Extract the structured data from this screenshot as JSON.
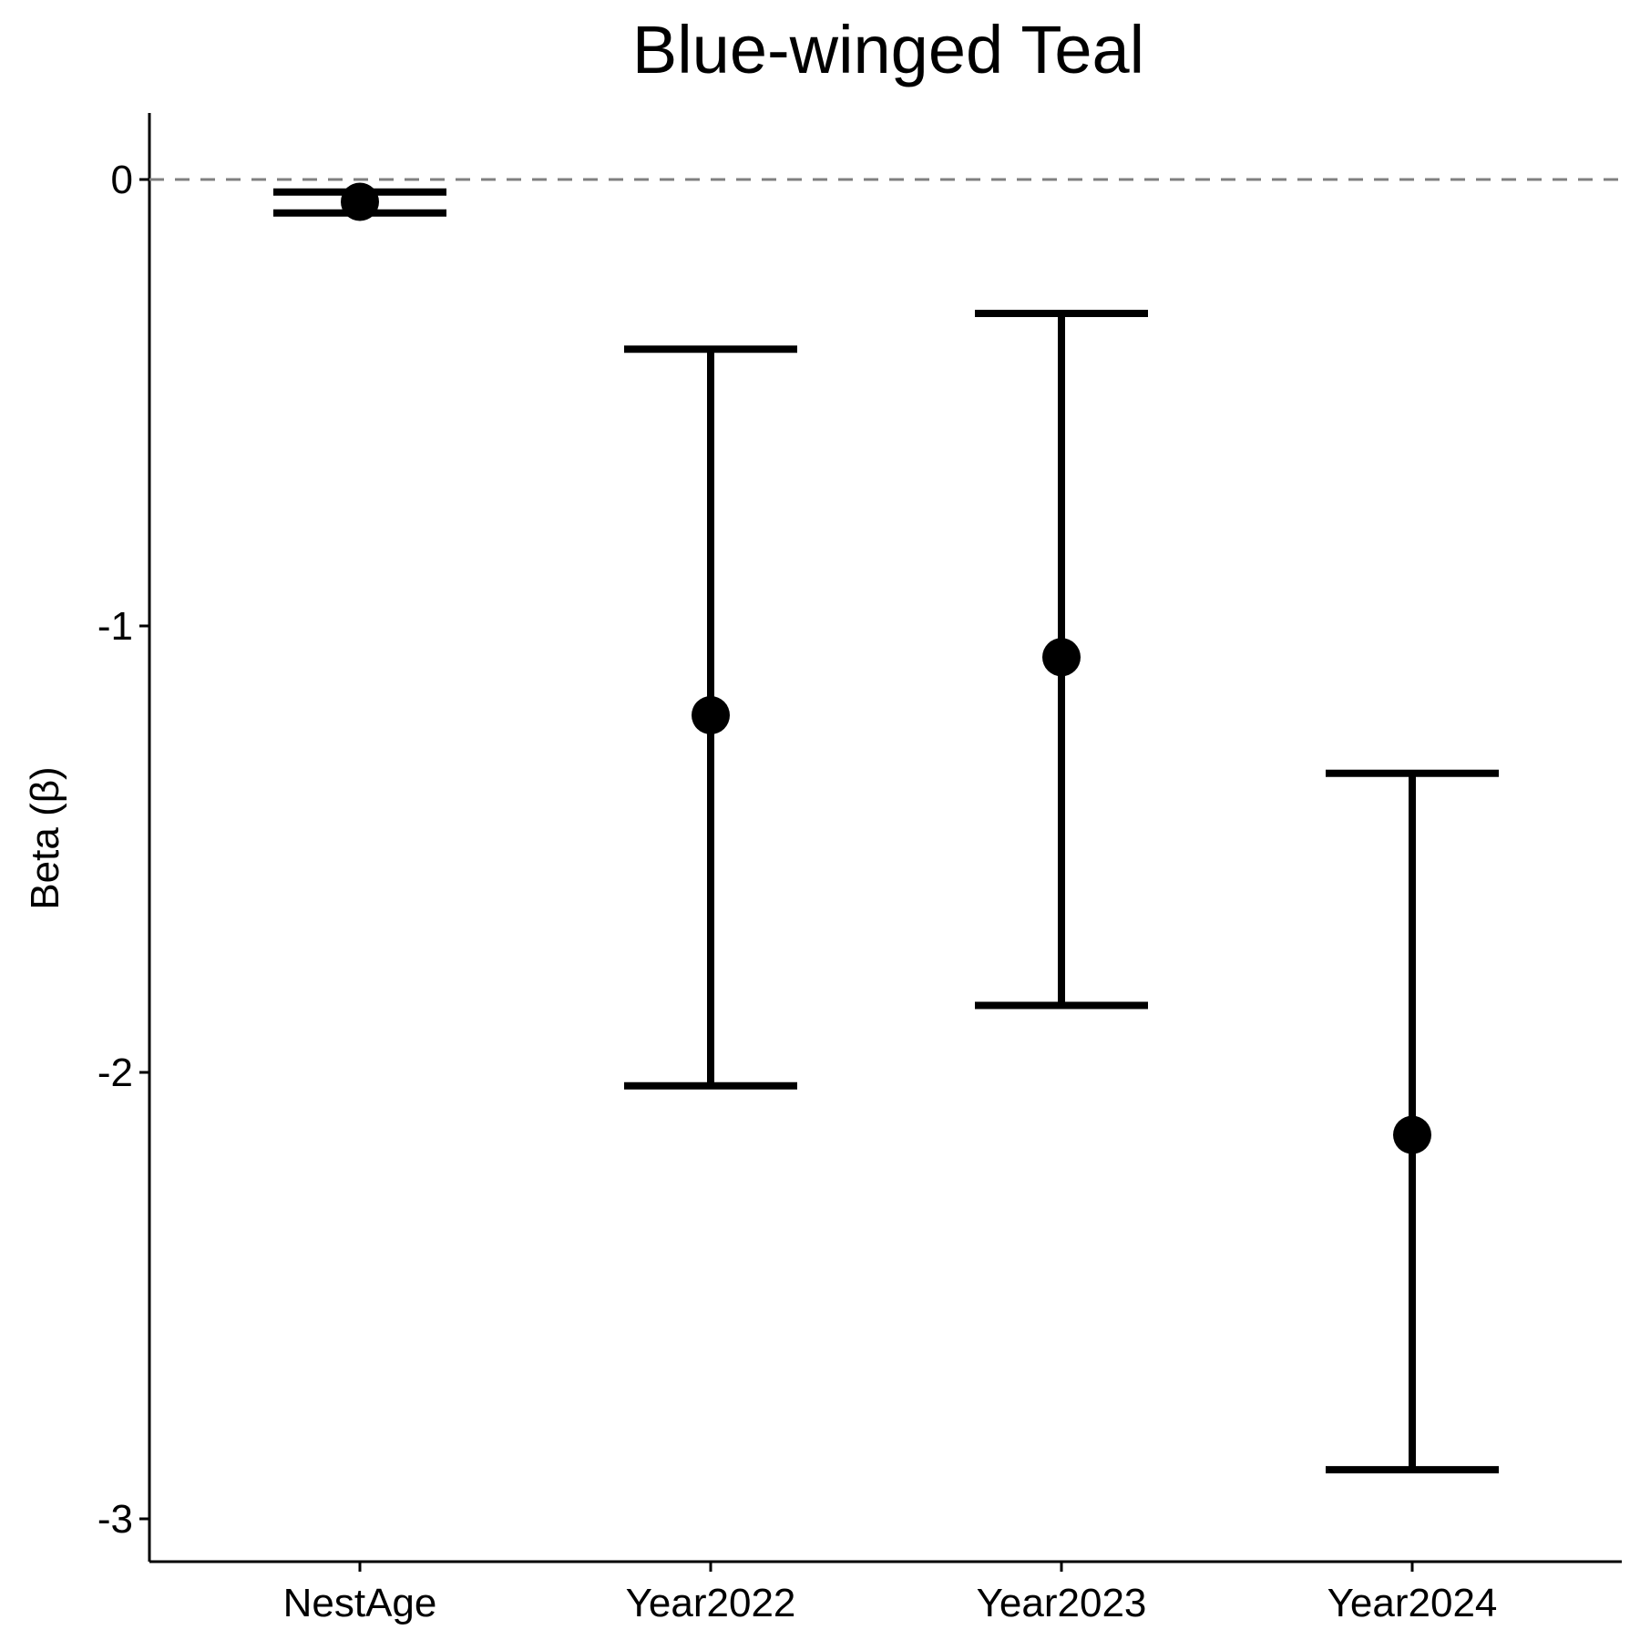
{
  "chart_data": {
    "type": "errorbar",
    "title": "Blue-winged Teal",
    "ylabel": "Beta (β)",
    "xlabel": "",
    "categories": [
      "NestAge",
      "Year2022",
      "Year2023",
      "Year2024"
    ],
    "points": [
      {
        "category": "NestAge",
        "estimate": -0.05,
        "lower": -0.075,
        "upper": -0.028
      },
      {
        "category": "Year2022",
        "estimate": -1.2,
        "lower": -2.03,
        "upper": -0.38
      },
      {
        "category": "Year2023",
        "estimate": -1.07,
        "lower": -1.85,
        "upper": -0.3
      },
      {
        "category": "Year2024",
        "estimate": -2.14,
        "lower": -2.89,
        "upper": -1.33
      }
    ],
    "yticks": [
      0,
      -1,
      -2,
      -3
    ],
    "ytick_labels": [
      "0",
      "-1",
      "-2",
      "-3"
    ],
    "ylim": [
      -3.16,
      0.15
    ],
    "reference_line": 0,
    "grid": false,
    "colors": {
      "points": "#000000",
      "reference_line": "#808080",
      "axes": "#000000"
    }
  }
}
